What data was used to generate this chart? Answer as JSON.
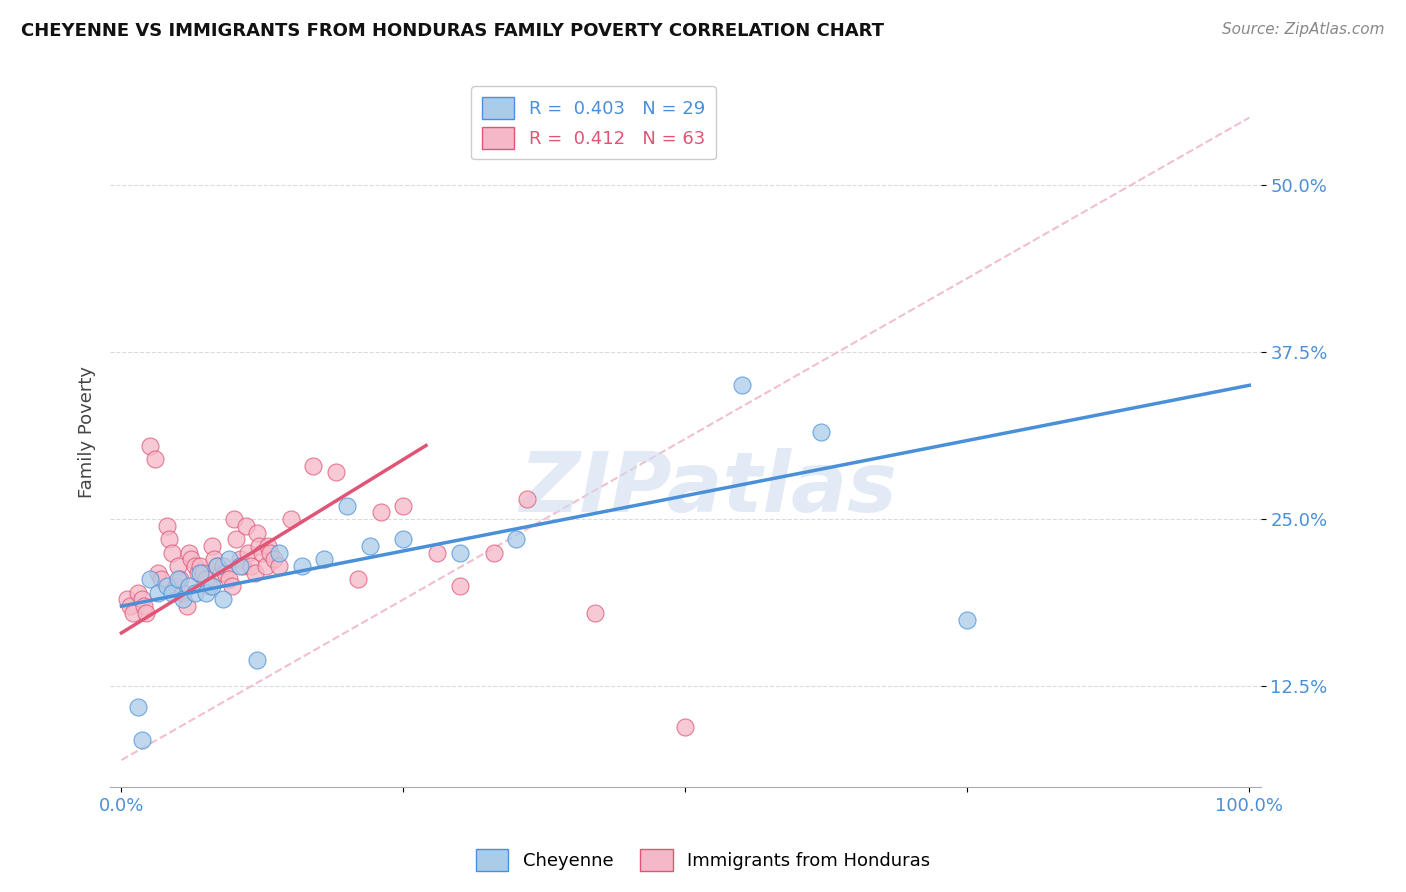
{
  "title": "CHEYENNE VS IMMIGRANTS FROM HONDURAS FAMILY POVERTY CORRELATION CHART",
  "source": "Source: ZipAtlas.com",
  "ylabel": "Family Poverty",
  "xlim": [
    -1,
    101
  ],
  "ylim": [
    5,
    58
  ],
  "yticks": [
    12.5,
    25.0,
    37.5,
    50.0
  ],
  "ytick_labels": [
    "12.5%",
    "25.0%",
    "37.5%",
    "50.0%"
  ],
  "xticks": [
    0,
    25,
    50,
    75,
    100
  ],
  "xtick_labels": [
    "0.0%",
    "",
    "",
    "",
    "100.0%"
  ],
  "legend1_r": "0.403",
  "legend1_n": "29",
  "legend2_r": "0.412",
  "legend2_n": "63",
  "blue_color": "#aacce8",
  "pink_color": "#f5b8c8",
  "blue_line_color": "#4a90d9",
  "pink_line_color": "#e05575",
  "ref_line_color": "#f0b8c8",
  "watermark": "ZIPatlas",
  "cheyenne_x": [
    1.5,
    1.8,
    2.5,
    3.2,
    4.0,
    4.5,
    5.0,
    5.5,
    6.0,
    6.5,
    7.0,
    7.5,
    8.0,
    8.5,
    9.0,
    9.5,
    10.5,
    12.0,
    14.0,
    16.0,
    18.0,
    20.0,
    22.0,
    25.0,
    30.0,
    35.0,
    55.0,
    62.0,
    75.0
  ],
  "cheyenne_y": [
    11.0,
    8.5,
    20.5,
    19.5,
    20.0,
    19.5,
    20.5,
    19.0,
    20.0,
    19.5,
    21.0,
    19.5,
    20.0,
    21.5,
    19.0,
    22.0,
    21.5,
    14.5,
    22.5,
    21.5,
    22.0,
    26.0,
    23.0,
    23.5,
    22.5,
    23.5,
    35.0,
    31.5,
    17.5
  ],
  "honduras_x": [
    0.5,
    0.8,
    1.0,
    1.5,
    1.8,
    2.0,
    2.2,
    2.5,
    3.0,
    3.2,
    3.5,
    4.0,
    4.2,
    4.5,
    4.8,
    5.0,
    5.2,
    5.5,
    5.8,
    6.0,
    6.2,
    6.5,
    6.8,
    7.0,
    7.2,
    7.5,
    7.8,
    8.0,
    8.2,
    8.5,
    8.8,
    9.0,
    9.2,
    9.5,
    9.8,
    10.0,
    10.2,
    10.5,
    10.8,
    11.0,
    11.2,
    11.5,
    11.8,
    12.0,
    12.2,
    12.5,
    12.8,
    13.0,
    13.2,
    13.5,
    14.0,
    15.0,
    17.0,
    19.0,
    21.0,
    23.0,
    25.0,
    28.0,
    30.0,
    33.0,
    36.0,
    42.0,
    50.0
  ],
  "honduras_y": [
    19.0,
    18.5,
    18.0,
    19.5,
    19.0,
    18.5,
    18.0,
    30.5,
    29.5,
    21.0,
    20.5,
    24.5,
    23.5,
    22.5,
    20.0,
    21.5,
    20.5,
    19.5,
    18.5,
    22.5,
    22.0,
    21.5,
    21.0,
    21.5,
    21.0,
    20.5,
    20.0,
    23.0,
    22.0,
    21.5,
    21.0,
    21.5,
    21.0,
    20.5,
    20.0,
    25.0,
    23.5,
    22.0,
    21.5,
    24.5,
    22.5,
    21.5,
    21.0,
    24.0,
    23.0,
    22.5,
    21.5,
    23.0,
    22.5,
    22.0,
    21.5,
    25.0,
    29.0,
    28.5,
    20.5,
    25.5,
    26.0,
    22.5,
    20.0,
    22.5,
    26.5,
    18.0,
    9.5
  ],
  "blue_reg_x0": 0,
  "blue_reg_y0": 18.5,
  "blue_reg_x1": 100,
  "blue_reg_y1": 35.0,
  "pink_reg_x0": 0,
  "pink_reg_y0": 16.5,
  "pink_reg_x1": 27,
  "pink_reg_y1": 30.5,
  "ref_line_x0": 0,
  "ref_line_y0": 7,
  "ref_line_x1": 100,
  "ref_line_y1": 55
}
